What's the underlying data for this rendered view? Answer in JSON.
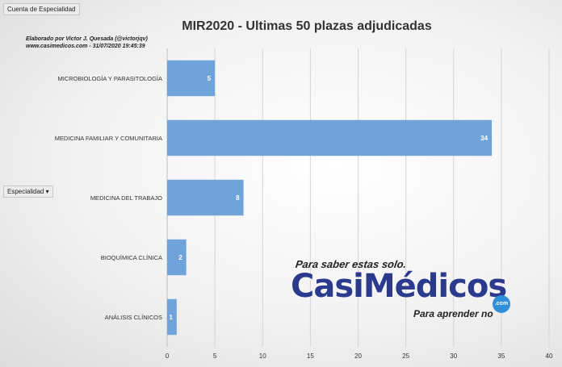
{
  "pivot": {
    "top_field": "Cuenta de Especialidad",
    "row_field": "Especialidad",
    "dropdown_icon": "caret-down-icon"
  },
  "credits": {
    "line1": "Elaborado por Victor J. Quesada (@victorjqv)",
    "line2": "www.casimedicos.com - 31/07/2020 19:45:39"
  },
  "logo": {
    "tagline_top": "Para saber estas solo.",
    "brand": "CasiMédicos",
    "dotcom": ".com",
    "tagline_bottom": "Para aprender no"
  },
  "chart_data": {
    "type": "bar",
    "orientation": "horizontal",
    "title": "MIR2020 - Ultimas 50 plazas adjudicadas",
    "categories": [
      "MICROBIOLOGÍA Y PARASITOLOGÍA",
      "MEDICINA FAMILIAR Y COMUNITARIA",
      "MEDICINA DEL TRABAJO",
      "BIOQUÍMICA CLÍNICA",
      "ANÁLISIS CLÍNICOS"
    ],
    "values": [
      5,
      34,
      8,
      2,
      1
    ],
    "xlim": [
      0,
      40
    ],
    "xticks": [
      0,
      5,
      10,
      15,
      20,
      25,
      30,
      35,
      40
    ],
    "grid": true,
    "data_labels": true,
    "bar_color": "#6fa3da",
    "legend": "none"
  }
}
